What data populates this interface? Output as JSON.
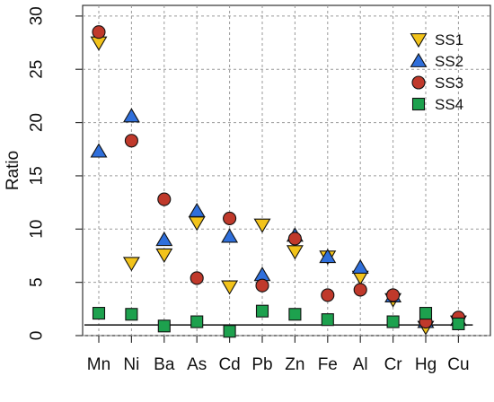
{
  "chart_data": {
    "type": "scatter",
    "title": "",
    "xlabel": "",
    "ylabel": "Ratio",
    "ylim": [
      0,
      31
    ],
    "yticks": [
      0,
      5,
      10,
      15,
      20,
      25,
      30
    ],
    "grid": true,
    "legend_position": "top-right",
    "reference_line": 1,
    "categories": [
      "Mn",
      "Ni",
      "Ba",
      "As",
      "Cd",
      "Pb",
      "Zn",
      "Fe",
      "Al",
      "Cr",
      "Hg",
      "Cu"
    ],
    "series": [
      {
        "name": "SS1",
        "marker": "triangle-down",
        "color": "#F2C31A",
        "values": [
          27.5,
          6.8,
          7.6,
          10.6,
          4.6,
          10.4,
          7.9,
          7.4,
          5.5,
          3.4,
          0.8,
          1.3
        ]
      },
      {
        "name": "SS2",
        "marker": "triangle-up",
        "color": "#2F6FDB",
        "values": [
          17.3,
          20.6,
          9.0,
          11.7,
          9.3,
          5.7,
          9.4,
          7.4,
          6.4,
          3.7,
          1.3,
          1.5
        ]
      },
      {
        "name": "SS3",
        "marker": "circle",
        "color": "#C0392B",
        "values": [
          28.5,
          18.3,
          12.8,
          5.4,
          11.0,
          4.7,
          9.1,
          3.8,
          4.3,
          3.8,
          1.3,
          1.7
        ]
      },
      {
        "name": "SS4",
        "marker": "square",
        "color": "#1DA14E",
        "values": [
          2.1,
          2.0,
          0.9,
          1.3,
          0.4,
          2.3,
          2.0,
          1.5,
          null,
          1.3,
          2.1,
          1.1
        ]
      }
    ]
  }
}
